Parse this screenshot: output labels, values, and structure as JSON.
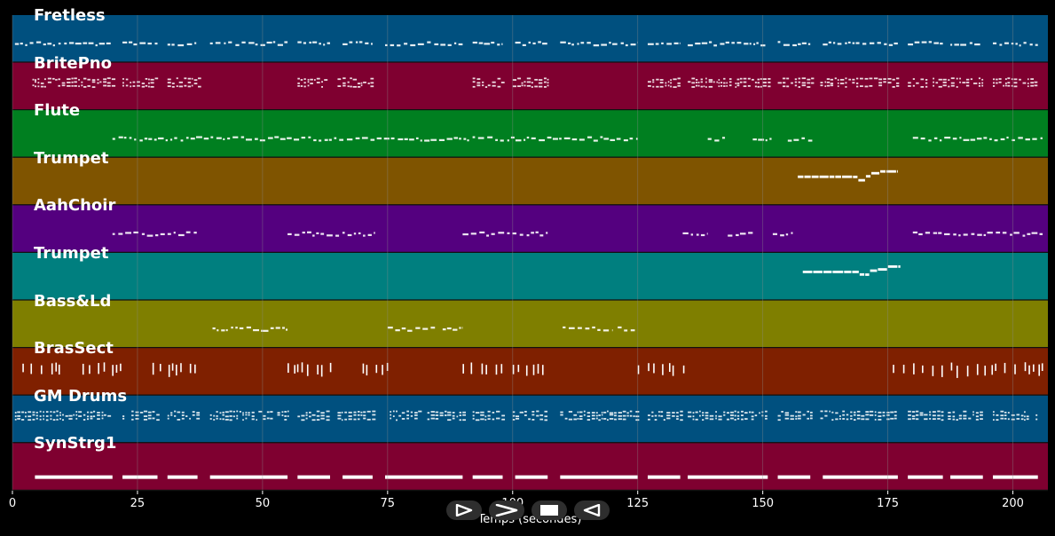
{
  "x_axis": {
    "label": "Temps (secondes)",
    "ticks": [
      "0",
      "25",
      "50",
      "75",
      "100",
      "125",
      "150",
      "175",
      "200"
    ],
    "tick_values": [
      0,
      25,
      50,
      75,
      100,
      125,
      150,
      175,
      200
    ],
    "range": [
      0,
      207
    ]
  },
  "tracks": [
    {
      "name": "Fretless",
      "color": "#00507f",
      "pattern": "dash",
      "segments": [
        [
          0.5,
          20
        ],
        [
          22,
          29
        ],
        [
          31,
          37
        ],
        [
          39.5,
          55
        ],
        [
          57,
          63.5
        ],
        [
          66,
          72
        ],
        [
          74.5,
          90
        ],
        [
          92,
          98
        ],
        [
          100.5,
          107
        ],
        [
          109.5,
          125
        ],
        [
          127,
          133.5
        ],
        [
          135,
          151
        ],
        [
          153,
          159.5
        ],
        [
          162,
          177
        ],
        [
          179,
          186
        ],
        [
          187.5,
          194
        ],
        [
          196,
          205
        ]
      ]
    },
    {
      "name": "BritePno",
      "color": "#7f0030",
      "pattern": "dense",
      "segments": [
        [
          4,
          20
        ],
        [
          22,
          29
        ],
        [
          31,
          37.5
        ],
        [
          57,
          63
        ],
        [
          65,
          72.5
        ],
        [
          92,
          98
        ],
        [
          100,
          107
        ],
        [
          127,
          133.5
        ],
        [
          135,
          151
        ],
        [
          153,
          160
        ],
        [
          161.5,
          177
        ],
        [
          179,
          186
        ],
        [
          187,
          194
        ],
        [
          196,
          205
        ]
      ]
    },
    {
      "name": "Flute",
      "color": "#007f20",
      "pattern": "dash",
      "segments": [
        [
          20,
          125
        ],
        [
          139,
          143
        ],
        [
          148,
          152
        ],
        [
          155,
          160
        ],
        [
          180,
          206
        ]
      ]
    },
    {
      "name": "Trumpet",
      "color": "#7f5400",
      "pattern": "melody",
      "segments": [
        [
          157,
          177
        ]
      ]
    },
    {
      "name": "AahChoir",
      "color": "#54007f",
      "pattern": "dash",
      "segments": [
        [
          20,
          37
        ],
        [
          55,
          72.5
        ],
        [
          90,
          107
        ],
        [
          134,
          139
        ],
        [
          143,
          148
        ],
        [
          152,
          156
        ],
        [
          180,
          206
        ]
      ]
    },
    {
      "name": "Trumpet",
      "color": "#007f7f",
      "pattern": "melody",
      "segments": [
        [
          158,
          177.5
        ]
      ]
    },
    {
      "name": "Bass&Ld",
      "color": "#7f7f00",
      "pattern": "dash",
      "segments": [
        [
          40,
          50
        ],
        [
          50,
          55
        ],
        [
          75,
          85
        ],
        [
          86,
          90
        ],
        [
          110,
          120
        ],
        [
          121,
          125
        ]
      ]
    },
    {
      "name": "BrasSect",
      "color": "#7f2000",
      "pattern": "spikes",
      "segments": [
        [
          2,
          10
        ],
        [
          14,
          22
        ],
        [
          28,
          38
        ],
        [
          55,
          65
        ],
        [
          70,
          75
        ],
        [
          90,
          98
        ],
        [
          100,
          108
        ],
        [
          125,
          135
        ],
        [
          176,
          206
        ]
      ]
    },
    {
      "name": "GM Drums",
      "color": "#00507f",
      "pattern": "dense",
      "segments": [
        [
          0.5,
          20
        ],
        [
          22,
          29
        ],
        [
          31,
          37.5
        ],
        [
          39.5,
          55
        ],
        [
          57,
          63
        ],
        [
          65,
          72.5
        ],
        [
          74.5,
          90
        ],
        [
          92,
          98
        ],
        [
          100,
          107
        ],
        [
          109.5,
          125
        ],
        [
          127,
          133.5
        ],
        [
          135,
          151
        ],
        [
          153,
          160
        ],
        [
          161.5,
          177
        ],
        [
          179,
          186
        ],
        [
          187,
          194
        ],
        [
          196,
          205
        ]
      ]
    },
    {
      "name": "SynStrg1",
      "color": "#7f0030",
      "pattern": "bars",
      "segments": [
        [
          4.5,
          20
        ],
        [
          22,
          29
        ],
        [
          31,
          37
        ],
        [
          39.5,
          55
        ],
        [
          57,
          63.5
        ],
        [
          66,
          72
        ],
        [
          74.5,
          90
        ],
        [
          92,
          98
        ],
        [
          100.5,
          107
        ],
        [
          109.5,
          125
        ],
        [
          127,
          133.5
        ],
        [
          135,
          151
        ],
        [
          153,
          159.5
        ],
        [
          162,
          177
        ],
        [
          179,
          186
        ],
        [
          187.5,
          194
        ],
        [
          196,
          205
        ]
      ]
    }
  ],
  "transport": [
    {
      "name": "play-outline",
      "label": "Play"
    },
    {
      "name": "fast-forward",
      "label": "Forward"
    },
    {
      "name": "stop",
      "label": "Stop"
    },
    {
      "name": "rewind",
      "label": "Back"
    }
  ],
  "colors": {
    "background": "#000000",
    "note": "#ffffff",
    "grid": "#8a8a8a"
  }
}
